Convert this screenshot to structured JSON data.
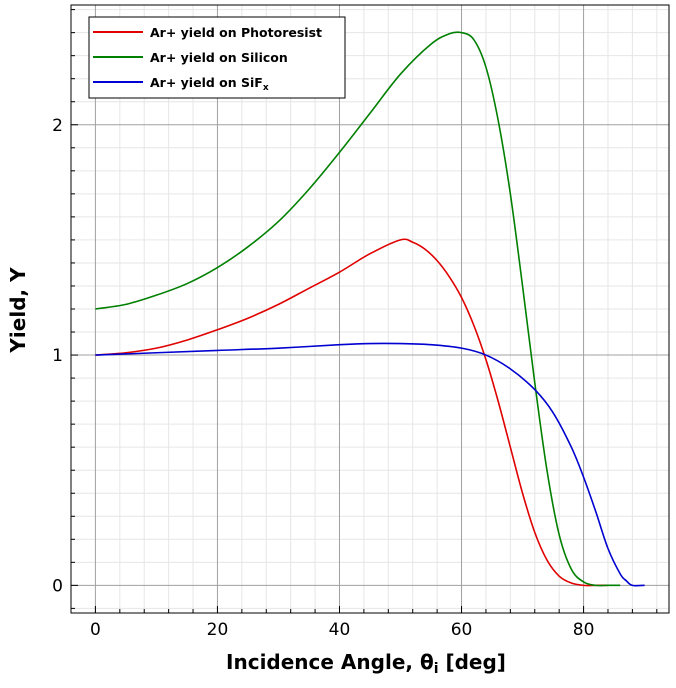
{
  "chart_data": {
    "type": "line",
    "title": "",
    "xlabel": "Incidence Angle, θ",
    "xlabel_sub": "i",
    "xlabel_suffix": " [deg]",
    "ylabel": "Yield, Y",
    "xlim": [
      -4,
      94
    ],
    "ylim": [
      -0.12,
      2.52
    ],
    "x_ticks": [
      0,
      20,
      40,
      60,
      80
    ],
    "y_ticks": [
      0,
      1,
      2
    ],
    "grid": true,
    "minor_grid": true,
    "legend_position": "top-left",
    "series": [
      {
        "name": "Ar+ yield on Photoresist",
        "color": "#e00000",
        "x": [
          0,
          5,
          10,
          15,
          20,
          25,
          30,
          35,
          40,
          45,
          50,
          52,
          54,
          56,
          58,
          60,
          62,
          64,
          66,
          68,
          70,
          72,
          74,
          76,
          78,
          80,
          82,
          84
        ],
        "y": [
          1.0,
          1.01,
          1.03,
          1.065,
          1.11,
          1.16,
          1.22,
          1.29,
          1.36,
          1.44,
          1.5,
          1.49,
          1.46,
          1.41,
          1.34,
          1.25,
          1.13,
          0.98,
          0.8,
          0.6,
          0.4,
          0.23,
          0.11,
          0.04,
          0.01,
          0.0,
          0.0,
          0.0
        ]
      },
      {
        "name": "Ar+ yield on Silicon",
        "color": "#008000",
        "x": [
          0,
          5,
          10,
          15,
          20,
          25,
          30,
          35,
          40,
          45,
          50,
          55,
          58,
          60,
          62,
          64,
          66,
          68,
          70,
          72,
          74,
          76,
          78,
          80,
          82,
          84,
          86
        ],
        "y": [
          1.2,
          1.22,
          1.26,
          1.31,
          1.38,
          1.47,
          1.58,
          1.72,
          1.88,
          2.05,
          2.22,
          2.35,
          2.395,
          2.4,
          2.37,
          2.25,
          2.02,
          1.7,
          1.3,
          0.88,
          0.5,
          0.22,
          0.07,
          0.015,
          0.0,
          0.0,
          0.0
        ]
      },
      {
        "name": "Ar+ yield on SiF",
        "name_sub": "x",
        "color": "#0000d0",
        "x": [
          0,
          10,
          20,
          30,
          40,
          45,
          50,
          55,
          60,
          64,
          68,
          72,
          75,
          78,
          80,
          82,
          84,
          86,
          87,
          88,
          90
        ],
        "y": [
          1.0,
          1.01,
          1.02,
          1.03,
          1.045,
          1.05,
          1.05,
          1.045,
          1.03,
          1.0,
          0.94,
          0.85,
          0.75,
          0.6,
          0.47,
          0.32,
          0.16,
          0.05,
          0.02,
          0.0,
          0.0
        ]
      }
    ]
  }
}
